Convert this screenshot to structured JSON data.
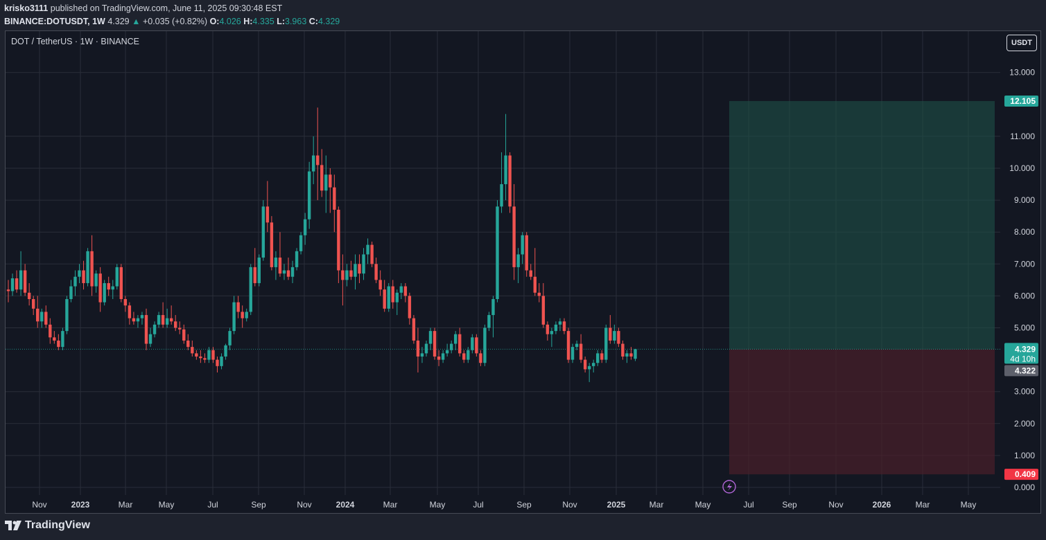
{
  "header": {
    "publisher": "krisko3111",
    "published_text": "published on TradingView.com, June 11, 2025 09:30:48 EST",
    "symbol": "BINANCE:DOTUSDT, 1W",
    "last": "4.329",
    "change": "+0.035 (+0.82%)",
    "o_label": "O:",
    "o_value": "4.026",
    "h_label": "H:",
    "h_value": "4.335",
    "l_label": "L:",
    "l_value": "3.963",
    "c_label": "C:",
    "c_value": "4.329"
  },
  "chart_title": "DOT / TetherUS · 1W · BINANCE",
  "currency_button": "USDT",
  "footer": {
    "brand": "TradingView",
    "logo_icon": "tradingview-logo-icon"
  },
  "colors": {
    "up": "#26a69a",
    "down": "#ef5350",
    "background": "#131722",
    "profit_zone": "#1e5047",
    "loss_zone": "#4a2029"
  },
  "chart_data": {
    "type": "candlestick",
    "title": "DOT / TetherUS · 1W · BINANCE",
    "ylim": [
      0,
      13.6
    ],
    "y_ticks": [
      "13.000",
      "11.000",
      "10.000",
      "9.000",
      "8.000",
      "7.000",
      "6.000",
      "5.000",
      "3.000",
      "2.000",
      "1.000",
      "0.000"
    ],
    "x_ticks": [
      "Nov",
      "2023",
      "Mar",
      "May",
      "Jul",
      "Sep",
      "Nov",
      "2024",
      "Mar",
      "May",
      "Jul",
      "Sep",
      "Nov",
      "2025",
      "Mar",
      "May",
      "Jul",
      "Sep",
      "Nov",
      "2026",
      "Mar",
      "May"
    ],
    "price_labels": {
      "target": "12.105",
      "current": "4.329",
      "countdown": "4d 10h",
      "prev_close": "4.322",
      "stop": "0.409"
    },
    "position": {
      "type": "long",
      "entry": 4.329,
      "target": 12.105,
      "stop": 0.409
    },
    "candles": [
      [
        6.2,
        6.5,
        5.8,
        6.15
      ],
      [
        6.15,
        6.7,
        6.0,
        6.55
      ],
      [
        6.55,
        6.8,
        6.1,
        6.2
      ],
      [
        6.2,
        7.4,
        6.0,
        6.8
      ],
      [
        6.8,
        7.0,
        6.0,
        6.1
      ],
      [
        6.1,
        6.4,
        5.7,
        5.9
      ],
      [
        5.9,
        6.0,
        5.4,
        5.6
      ],
      [
        5.6,
        6.0,
        5.0,
        5.2
      ],
      [
        5.2,
        5.6,
        5.0,
        5.5
      ],
      [
        5.5,
        5.7,
        5.0,
        5.1
      ],
      [
        5.1,
        5.3,
        4.5,
        4.7
      ],
      [
        4.7,
        4.9,
        4.5,
        4.6
      ],
      [
        4.6,
        4.8,
        4.3,
        4.4
      ],
      [
        4.4,
        5.0,
        4.3,
        4.9
      ],
      [
        4.9,
        6.0,
        4.8,
        5.9
      ],
      [
        5.9,
        6.5,
        5.8,
        6.3
      ],
      [
        6.3,
        6.8,
        6.0,
        6.6
      ],
      [
        6.6,
        7.0,
        6.4,
        6.8
      ],
      [
        6.8,
        7.1,
        6.2,
        6.4
      ],
      [
        6.4,
        7.5,
        6.3,
        7.4
      ],
      [
        7.4,
        7.9,
        6.0,
        6.3
      ],
      [
        6.3,
        6.8,
        6.1,
        6.7
      ],
      [
        6.7,
        6.9,
        5.5,
        5.8
      ],
      [
        5.8,
        6.5,
        5.7,
        6.4
      ],
      [
        6.4,
        6.6,
        6.0,
        6.2
      ],
      [
        6.2,
        6.5,
        5.9,
        6.3
      ],
      [
        6.3,
        7.0,
        6.2,
        6.9
      ],
      [
        6.9,
        7.0,
        5.8,
        5.9
      ],
      [
        5.9,
        6.0,
        5.5,
        5.7
      ],
      [
        5.7,
        5.8,
        5.1,
        5.3
      ],
      [
        5.3,
        5.5,
        5.1,
        5.2
      ],
      [
        5.2,
        5.4,
        5.0,
        5.3
      ],
      [
        5.3,
        5.5,
        5.1,
        5.4
      ],
      [
        5.4,
        5.6,
        4.3,
        4.5
      ],
      [
        4.5,
        5.0,
        4.4,
        4.8
      ],
      [
        4.8,
        5.2,
        4.7,
        5.1
      ],
      [
        5.1,
        5.5,
        5.0,
        5.4
      ],
      [
        5.4,
        5.8,
        5.0,
        5.1
      ],
      [
        5.1,
        5.6,
        5.0,
        5.3
      ],
      [
        5.3,
        5.7,
        5.1,
        5.2
      ],
      [
        5.2,
        5.4,
        4.9,
        5.0
      ],
      [
        5.0,
        5.2,
        4.8,
        4.95
      ],
      [
        4.95,
        5.1,
        4.5,
        4.6
      ],
      [
        4.6,
        4.8,
        4.3,
        4.4
      ],
      [
        4.4,
        4.6,
        4.1,
        4.2
      ],
      [
        4.2,
        4.3,
        4.0,
        4.1
      ],
      [
        4.1,
        4.3,
        3.9,
        4.05
      ],
      [
        4.05,
        4.2,
        3.9,
        4.0
      ],
      [
        4.0,
        4.4,
        3.9,
        4.3
      ],
      [
        4.3,
        4.4,
        3.9,
        4.0
      ],
      [
        4.0,
        4.1,
        3.6,
        3.8
      ],
      [
        3.8,
        4.2,
        3.7,
        4.1
      ],
      [
        4.1,
        4.5,
        4.0,
        4.45
      ],
      [
        4.45,
        5.0,
        4.3,
        4.9
      ],
      [
        4.9,
        6.0,
        4.8,
        5.8
      ],
      [
        5.8,
        6.0,
        5.3,
        5.5
      ],
      [
        5.5,
        5.7,
        5.0,
        5.3
      ],
      [
        5.3,
        5.6,
        5.2,
        5.5
      ],
      [
        5.5,
        7.0,
        5.4,
        6.9
      ],
      [
        6.9,
        7.5,
        6.3,
        6.4
      ],
      [
        6.4,
        7.3,
        6.3,
        7.2
      ],
      [
        7.2,
        9.0,
        7.1,
        8.8
      ],
      [
        8.8,
        9.6,
        8.0,
        8.3
      ],
      [
        8.3,
        8.5,
        6.8,
        6.9
      ],
      [
        6.9,
        7.4,
        6.5,
        7.2
      ],
      [
        7.2,
        8.0,
        6.6,
        6.7
      ],
      [
        6.7,
        7.0,
        6.5,
        6.8
      ],
      [
        6.8,
        7.2,
        6.5,
        6.6
      ],
      [
        6.6,
        7.1,
        6.4,
        6.9
      ],
      [
        6.9,
        7.5,
        6.8,
        7.4
      ],
      [
        7.4,
        8.0,
        7.3,
        7.9
      ],
      [
        7.9,
        8.6,
        7.6,
        8.4
      ],
      [
        8.4,
        10.2,
        8.1,
        9.9
      ],
      [
        9.9,
        11.0,
        9.5,
        10.4
      ],
      [
        10.4,
        11.9,
        9.0,
        10.1
      ],
      [
        10.1,
        10.6,
        9.1,
        9.3
      ],
      [
        9.3,
        10.4,
        8.6,
        9.8
      ],
      [
        9.8,
        10.0,
        8.6,
        9.4
      ],
      [
        9.4,
        9.8,
        8.0,
        8.7
      ],
      [
        8.7,
        8.8,
        6.4,
        6.8
      ],
      [
        6.8,
        7.3,
        5.7,
        6.5
      ],
      [
        6.5,
        7.0,
        6.3,
        6.8
      ],
      [
        6.8,
        7.1,
        6.5,
        6.6
      ],
      [
        6.6,
        7.3,
        6.2,
        7.0
      ],
      [
        7.0,
        7.3,
        6.4,
        6.7
      ],
      [
        6.7,
        7.5,
        6.5,
        7.3
      ],
      [
        7.3,
        7.8,
        7.0,
        7.6
      ],
      [
        7.6,
        7.7,
        6.9,
        7.0
      ],
      [
        7.0,
        7.2,
        6.4,
        6.5
      ],
      [
        6.5,
        6.8,
        6.0,
        6.2
      ],
      [
        6.2,
        6.5,
        5.5,
        5.6
      ],
      [
        5.6,
        6.4,
        5.5,
        6.3
      ],
      [
        6.3,
        6.5,
        5.6,
        5.8
      ],
      [
        5.8,
        6.2,
        5.4,
        6.1
      ],
      [
        6.1,
        6.4,
        5.9,
        6.3
      ],
      [
        6.3,
        6.4,
        5.8,
        6.0
      ],
      [
        6.0,
        6.1,
        5.1,
        5.3
      ],
      [
        5.3,
        5.4,
        4.5,
        4.6
      ],
      [
        4.6,
        5.0,
        3.6,
        4.1
      ],
      [
        4.1,
        4.4,
        3.9,
        4.2
      ],
      [
        4.2,
        4.6,
        4.1,
        4.5
      ],
      [
        4.5,
        5.0,
        4.3,
        4.9
      ],
      [
        4.9,
        5.0,
        4.0,
        4.1
      ],
      [
        4.1,
        4.3,
        3.8,
        4.0
      ],
      [
        4.0,
        4.3,
        3.9,
        4.2
      ],
      [
        4.2,
        4.5,
        4.1,
        4.3
      ],
      [
        4.3,
        4.6,
        4.2,
        4.5
      ],
      [
        4.5,
        4.9,
        4.3,
        4.8
      ],
      [
        4.8,
        5.0,
        4.1,
        4.2
      ],
      [
        4.2,
        4.3,
        3.9,
        4.0
      ],
      [
        4.0,
        4.4,
        3.9,
        4.3
      ],
      [
        4.3,
        4.8,
        4.2,
        4.7
      ],
      [
        4.7,
        4.8,
        4.1,
        4.2
      ],
      [
        4.2,
        4.3,
        3.8,
        3.9
      ],
      [
        3.9,
        5.1,
        3.8,
        5.0
      ],
      [
        5.0,
        5.5,
        4.9,
        5.4
      ],
      [
        5.4,
        6.0,
        4.7,
        5.9
      ],
      [
        5.9,
        9.0,
        5.8,
        8.8
      ],
      [
        8.8,
        10.5,
        8.6,
        9.5
      ],
      [
        9.5,
        11.7,
        9.0,
        10.4
      ],
      [
        10.4,
        10.5,
        8.6,
        8.8
      ],
      [
        8.8,
        9.5,
        6.5,
        6.9
      ],
      [
        6.9,
        7.5,
        6.4,
        7.3
      ],
      [
        7.3,
        8.0,
        7.0,
        7.9
      ],
      [
        7.9,
        8.0,
        6.6,
        6.8
      ],
      [
        6.8,
        7.0,
        6.5,
        6.6
      ],
      [
        6.6,
        7.5,
        6.0,
        6.1
      ],
      [
        6.1,
        6.4,
        5.8,
        6.0
      ],
      [
        6.0,
        6.4,
        5.0,
        5.1
      ],
      [
        5.1,
        5.2,
        4.6,
        4.8
      ],
      [
        4.8,
        5.0,
        4.4,
        4.9
      ],
      [
        4.9,
        5.2,
        4.8,
        5.1
      ],
      [
        5.1,
        5.3,
        4.9,
        5.2
      ],
      [
        5.2,
        5.3,
        4.8,
        4.9
      ],
      [
        4.9,
        5.0,
        3.9,
        4.0
      ],
      [
        4.0,
        4.5,
        3.9,
        4.4
      ],
      [
        4.4,
        4.6,
        4.3,
        4.5
      ],
      [
        4.5,
        4.8,
        3.9,
        4.0
      ],
      [
        4.0,
        4.1,
        3.6,
        3.7
      ],
      [
        3.7,
        3.9,
        3.3,
        3.8
      ],
      [
        3.8,
        4.0,
        3.6,
        3.9
      ],
      [
        3.9,
        4.3,
        3.8,
        4.2
      ],
      [
        4.2,
        4.3,
        3.9,
        4.0
      ],
      [
        4.0,
        5.1,
        3.9,
        5.0
      ],
      [
        5.0,
        5.4,
        4.5,
        4.6
      ],
      [
        4.6,
        5.1,
        4.5,
        4.9
      ],
      [
        4.9,
        5.0,
        4.4,
        4.5
      ],
      [
        4.5,
        4.6,
        4.0,
        4.1
      ],
      [
        4.1,
        4.3,
        3.9,
        4.2
      ],
      [
        4.2,
        4.4,
        4.0,
        4.1
      ],
      [
        4.03,
        4.34,
        3.96,
        4.33
      ]
    ]
  }
}
